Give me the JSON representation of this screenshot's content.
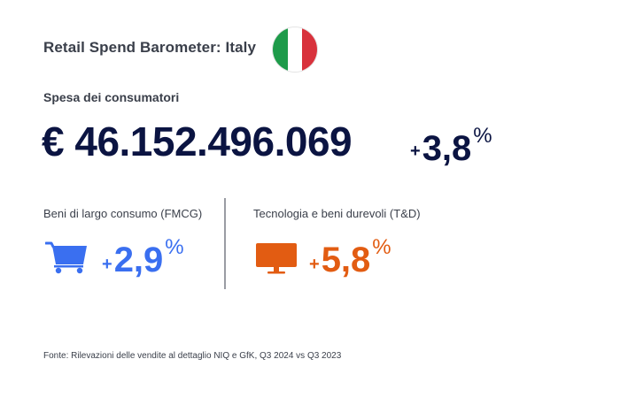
{
  "header": {
    "title": "Retail Spend Barometer: Italy",
    "flag_colors": [
      "#1e9b4a",
      "#ffffff",
      "#d8323c"
    ]
  },
  "summary": {
    "label": "Spesa dei consumatori",
    "amount": "€ 46.152.496.069",
    "change_sign": "+",
    "change_value": "3,8",
    "change_unit": "%"
  },
  "categories": [
    {
      "label": "Beni di largo consumo (FMCG)",
      "icon": "shopping-cart-icon",
      "color": "#3a6ff0",
      "change_sign": "+",
      "change_value": "2,9",
      "change_unit": "%"
    },
    {
      "label": "Tecnologia e beni durevoli (T&D)",
      "icon": "monitor-icon",
      "color": "#e25c12",
      "change_sign": "+",
      "change_value": "5,8",
      "change_unit": "%"
    }
  ],
  "footer": {
    "source": "Fonte: Rilevazioni delle vendite al dettaglio NIQ e GfK, Q3 2024 vs Q3 2023"
  }
}
